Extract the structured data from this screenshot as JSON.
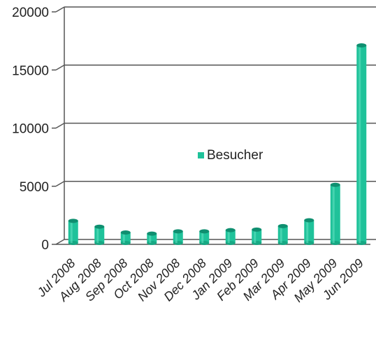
{
  "chart_data": {
    "type": "bar",
    "categories": [
      "Jul 2008",
      "Aug 2008",
      "Sep 2008",
      "Oct 2008",
      "Nov 2008",
      "Dec 2008",
      "Jan 2009",
      "Feb 2009",
      "Mar 2009",
      "Apr 2009",
      "May 2009",
      "Jun 2009"
    ],
    "series": [
      {
        "name": "Besucher",
        "values": [
          1900,
          1400,
          900,
          800,
          1000,
          1000,
          1100,
          1150,
          1450,
          1950,
          5000,
          17000
        ],
        "color": "#1fc29a"
      }
    ],
    "title": "",
    "xlabel": "",
    "ylabel": "",
    "ylim": [
      0,
      20000
    ],
    "yticks": [
      0,
      5000,
      10000,
      15000,
      20000
    ],
    "ytick_labels": [
      "0",
      "5000",
      "10000",
      "15000",
      "20000"
    ],
    "grid": true,
    "legend_position": "center"
  }
}
